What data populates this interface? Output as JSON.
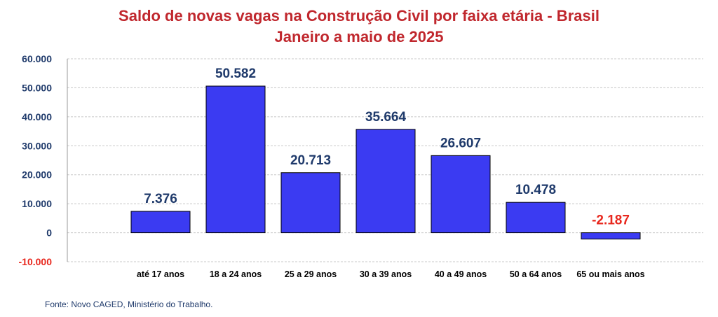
{
  "chart_data": {
    "type": "bar",
    "title": "Saldo de novas vagas na Construção Civil por faixa etária - Brasil",
    "subtitle": "Janeiro a maio de 2025",
    "categories": [
      "até 17 anos",
      "18 a 24 anos",
      "25 a 29 anos",
      "30 a 39 anos",
      "40 a 49 anos",
      "50 a 64 anos",
      "65 ou mais anos"
    ],
    "values": [
      7376,
      50582,
      20713,
      35664,
      26607,
      10478,
      -2187
    ],
    "data_labels": [
      "7.376",
      "50.582",
      "20.713",
      "35.664",
      "26.607",
      "10.478",
      "-2.187"
    ],
    "yticks": [
      60000,
      50000,
      40000,
      30000,
      20000,
      10000,
      0,
      -10000
    ],
    "ytick_labels": [
      "60.000",
      "50.000",
      "40.000",
      "30.000",
      "20.000",
      "10.000",
      "0",
      "-10.000"
    ],
    "ylim": [
      -10000,
      60000
    ],
    "grid": true,
    "legend": "none",
    "colors": {
      "bar": "#3b3bf2",
      "bar_edge": "#000000",
      "title": "#c0272d",
      "positive_label": "#1f3a6b",
      "negative_label": "#e8281e",
      "axis_tick": "#1f3a6b",
      "grid": "#c8c8c8"
    }
  },
  "source": "Fonte: Novo CAGED, Ministério do Trabalho."
}
